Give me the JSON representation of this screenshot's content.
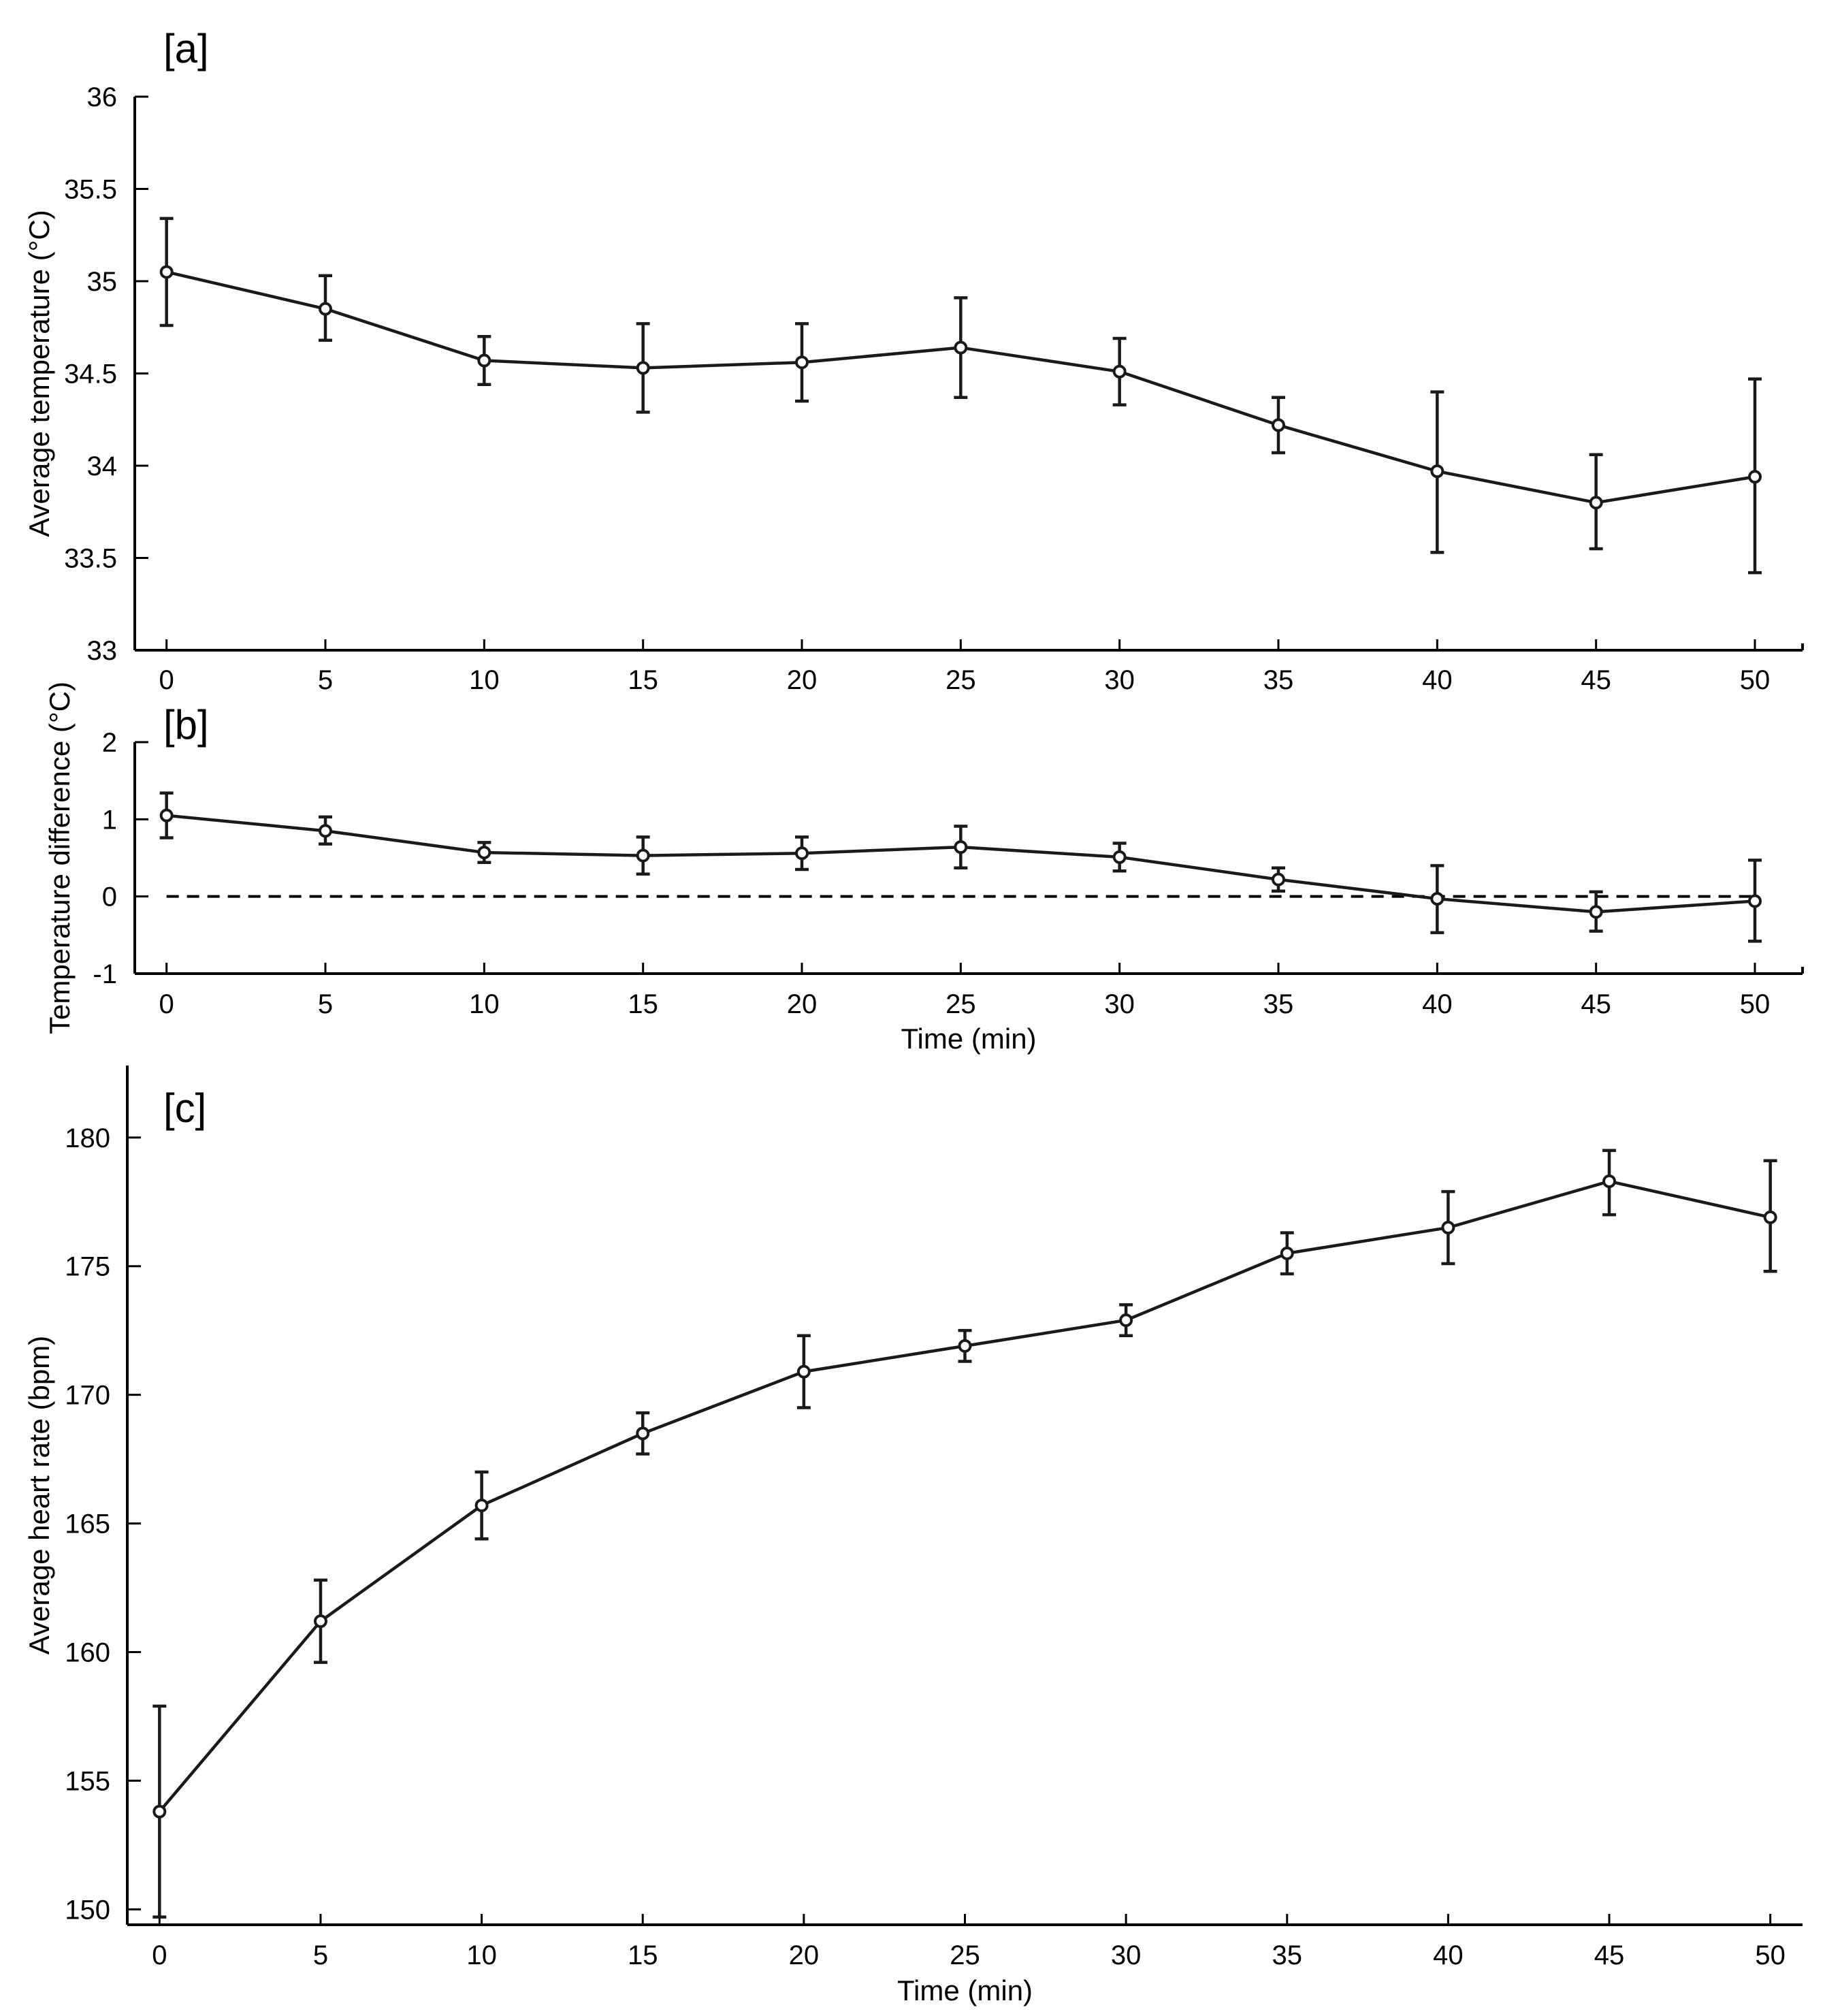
{
  "colors": {
    "series": "#1a1a1a",
    "axis": "#000000",
    "marker_fill": "#ffffff",
    "background": "#ffffff"
  },
  "chart_data": [
    {
      "panel": "[a]",
      "type": "line",
      "title": "",
      "xlabel": "",
      "ylabel": "Average temperature (°C)",
      "x": [
        0,
        5,
        10,
        15,
        20,
        25,
        30,
        35,
        40,
        45,
        50
      ],
      "xticks": [
        "0",
        "5",
        "10",
        "15",
        "20",
        "25",
        "30",
        "35",
        "40",
        "45",
        "50"
      ],
      "xlim": [
        -1,
        51.5
      ],
      "ylim": [
        33,
        36
      ],
      "yticks": [
        "33",
        "33.5",
        "34",
        "34.5",
        "35",
        "35.5",
        "36"
      ],
      "grid": false,
      "series": [
        {
          "name": "Average temperature",
          "values": [
            35.05,
            34.85,
            34.57,
            34.53,
            34.56,
            34.64,
            34.51,
            34.22,
            33.97,
            33.8,
            33.94
          ],
          "error_upper": [
            35.34,
            35.03,
            34.7,
            34.77,
            34.77,
            34.91,
            34.69,
            34.37,
            34.4,
            34.06,
            34.47
          ],
          "error_lower": [
            34.76,
            34.68,
            34.44,
            34.29,
            34.35,
            34.37,
            34.33,
            34.07,
            33.53,
            33.55,
            33.42
          ]
        }
      ]
    },
    {
      "panel": "[b]",
      "type": "line",
      "title": "",
      "xlabel": "Time (min)",
      "ylabel": "Temperature difference (°C)",
      "x": [
        0,
        5,
        10,
        15,
        20,
        25,
        30,
        35,
        40,
        45,
        50
      ],
      "xticks": [
        "0",
        "5",
        "10",
        "15",
        "20",
        "25",
        "30",
        "35",
        "40",
        "45",
        "50"
      ],
      "xlim": [
        -1,
        51.5
      ],
      "ylim": [
        -1,
        2
      ],
      "yticks": [
        "-1",
        "0",
        "1",
        "2"
      ],
      "reference_line": {
        "y": 0,
        "style": "dashed"
      },
      "grid": false,
      "series": [
        {
          "name": "Temperature difference",
          "values": [
            1.05,
            0.85,
            0.57,
            0.53,
            0.56,
            0.64,
            0.51,
            0.22,
            -0.03,
            -0.2,
            -0.06
          ],
          "error_upper": [
            1.34,
            1.03,
            0.7,
            0.77,
            0.77,
            0.91,
            0.69,
            0.37,
            0.4,
            0.06,
            0.47
          ],
          "error_lower": [
            0.76,
            0.68,
            0.44,
            0.29,
            0.35,
            0.37,
            0.33,
            0.07,
            -0.47,
            -0.45,
            -0.58
          ]
        }
      ]
    },
    {
      "panel": "[c]",
      "type": "line",
      "title": "",
      "xlabel": "Time (min)",
      "ylabel": "Average heart rate (bpm)",
      "x": [
        0,
        5,
        10,
        15,
        20,
        25,
        30,
        35,
        40,
        45,
        50
      ],
      "xticks": [
        "0",
        "5",
        "10",
        "15",
        "20",
        "25",
        "30",
        "35",
        "40",
        "45",
        "50"
      ],
      "xlim": [
        -1,
        51
      ],
      "ylim": [
        149.4,
        182.8
      ],
      "yticks": [
        "150",
        "155",
        "160",
        "165",
        "170",
        "175",
        "180"
      ],
      "grid": false,
      "series": [
        {
          "name": "Average heart rate",
          "values": [
            153.8,
            161.2,
            165.7,
            168.5,
            170.9,
            171.9,
            172.9,
            175.5,
            176.5,
            178.3,
            176.9
          ],
          "error_upper": [
            157.9,
            162.8,
            167.0,
            169.3,
            172.3,
            172.5,
            173.5,
            176.3,
            177.9,
            179.5,
            179.1
          ],
          "error_lower": [
            149.7,
            159.6,
            164.4,
            167.7,
            169.5,
            171.3,
            172.3,
            174.7,
            175.1,
            177.0,
            174.8
          ]
        }
      ]
    }
  ]
}
